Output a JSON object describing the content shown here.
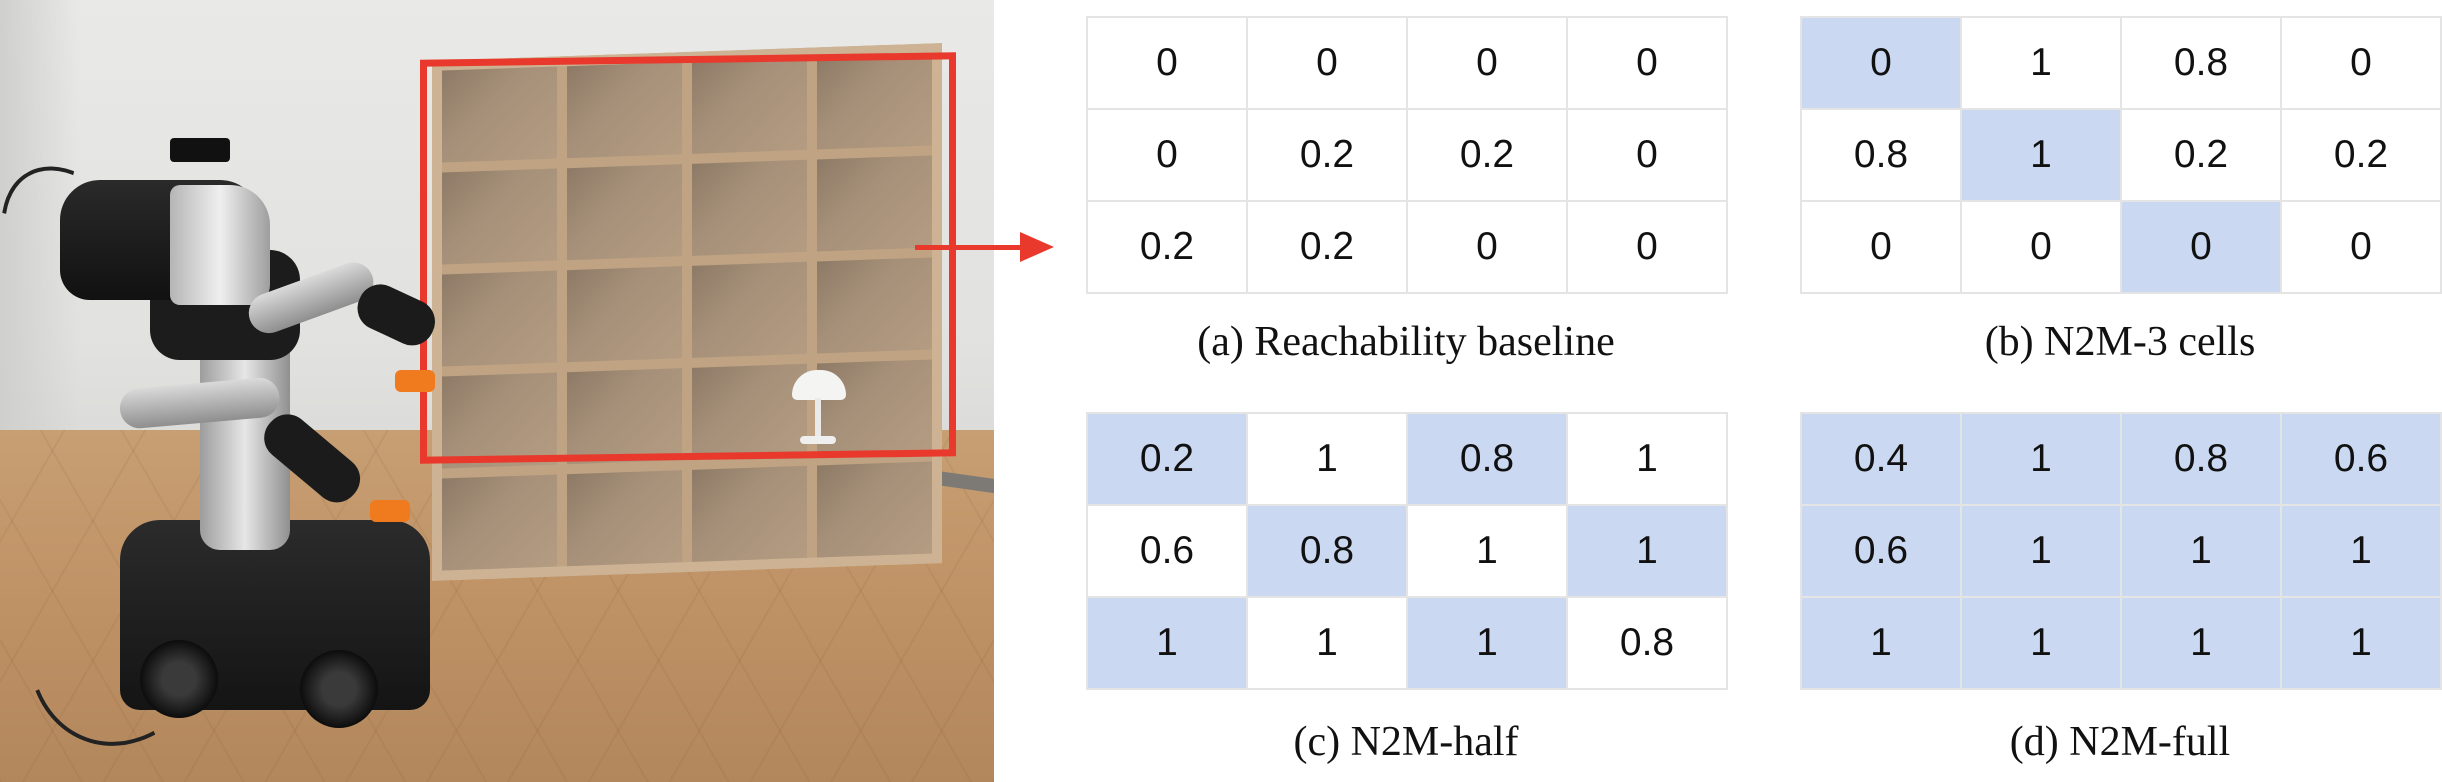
{
  "panels": [
    {
      "id": "a",
      "caption": "(a) Reachability baseline",
      "rows": [
        [
          {
            "v": "0",
            "hl": false
          },
          {
            "v": "0",
            "hl": false
          },
          {
            "v": "0",
            "hl": false
          },
          {
            "v": "0",
            "hl": false
          }
        ],
        [
          {
            "v": "0",
            "hl": false
          },
          {
            "v": "0.2",
            "hl": false
          },
          {
            "v": "0.2",
            "hl": false
          },
          {
            "v": "0",
            "hl": false
          }
        ],
        [
          {
            "v": "0.2",
            "hl": false
          },
          {
            "v": "0.2",
            "hl": false
          },
          {
            "v": "0",
            "hl": false
          },
          {
            "v": "0",
            "hl": false
          }
        ]
      ]
    },
    {
      "id": "b",
      "caption": "(b) N2M-3 cells",
      "rows": [
        [
          {
            "v": "0",
            "hl": true
          },
          {
            "v": "1",
            "hl": false
          },
          {
            "v": "0.8",
            "hl": false
          },
          {
            "v": "0",
            "hl": false
          }
        ],
        [
          {
            "v": "0.8",
            "hl": false
          },
          {
            "v": "1",
            "hl": true
          },
          {
            "v": "0.2",
            "hl": false
          },
          {
            "v": "0.2",
            "hl": false
          }
        ],
        [
          {
            "v": "0",
            "hl": false
          },
          {
            "v": "0",
            "hl": false
          },
          {
            "v": "0",
            "hl": true
          },
          {
            "v": "0",
            "hl": false
          }
        ]
      ]
    },
    {
      "id": "c",
      "caption": "(c) N2M-half",
      "rows": [
        [
          {
            "v": "0.2",
            "hl": true
          },
          {
            "v": "1",
            "hl": false
          },
          {
            "v": "0.8",
            "hl": true
          },
          {
            "v": "1",
            "hl": false
          }
        ],
        [
          {
            "v": "0.6",
            "hl": false
          },
          {
            "v": "0.8",
            "hl": true
          },
          {
            "v": "1",
            "hl": false
          },
          {
            "v": "1",
            "hl": true
          }
        ],
        [
          {
            "v": "1",
            "hl": true
          },
          {
            "v": "1",
            "hl": false
          },
          {
            "v": "1",
            "hl": true
          },
          {
            "v": "0.8",
            "hl": false
          }
        ]
      ]
    },
    {
      "id": "d",
      "caption": "(d) N2M-full",
      "rows": [
        [
          {
            "v": "0.4",
            "hl": true
          },
          {
            "v": "1",
            "hl": true
          },
          {
            "v": "0.8",
            "hl": true
          },
          {
            "v": "0.6",
            "hl": true
          }
        ],
        [
          {
            "v": "0.6",
            "hl": true
          },
          {
            "v": "1",
            "hl": true
          },
          {
            "v": "1",
            "hl": true
          },
          {
            "v": "1",
            "hl": true
          }
        ],
        [
          {
            "v": "1",
            "hl": true
          },
          {
            "v": "1",
            "hl": true
          },
          {
            "v": "1",
            "hl": true
          },
          {
            "v": "1",
            "hl": true
          }
        ]
      ]
    }
  ],
  "colors": {
    "highlight_cell": "#cbd8f2",
    "annotation_red": "#e8392c",
    "grid_line": "#e4e4e4"
  }
}
